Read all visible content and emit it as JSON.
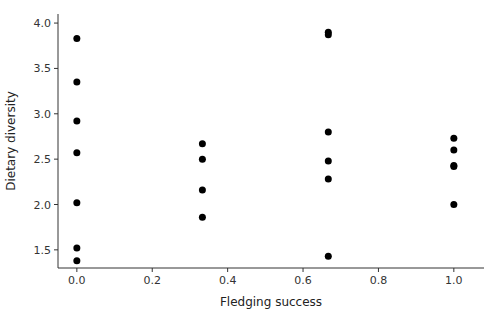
{
  "chart_data": {
    "type": "scatter",
    "x": [
      0.0,
      0.0,
      0.0,
      0.0,
      0.0,
      0.0,
      0.0,
      0.333,
      0.333,
      0.333,
      0.333,
      0.667,
      0.667,
      0.667,
      0.667,
      0.667,
      0.667,
      1.0,
      1.0,
      1.0,
      1.0,
      1.0
    ],
    "values": [
      3.83,
      3.35,
      2.92,
      2.57,
      2.02,
      1.52,
      1.38,
      2.67,
      2.5,
      2.16,
      1.86,
      3.9,
      3.87,
      2.8,
      2.48,
      2.28,
      1.43,
      2.73,
      2.6,
      2.43,
      2.42,
      2.0
    ],
    "xlabel": "Fledging success",
    "ylabel": "Dietary diversity",
    "xlim": [
      -0.05,
      1.08
    ],
    "ylim": [
      1.3,
      4.1
    ],
    "xticks": [
      {
        "value": 0.0,
        "label": "0.0"
      },
      0.2,
      0.4,
      0.6,
      0.8,
      {
        "value": 1.0,
        "label": "1.0"
      }
    ],
    "yticks": [
      1.5,
      {
        "value": 2.0,
        "label": "2.0"
      },
      2.5,
      {
        "value": 3.0,
        "label": "3.0"
      },
      3.5,
      {
        "value": 4.0,
        "label": "4.0"
      }
    ],
    "color": "black",
    "grid": false
  }
}
